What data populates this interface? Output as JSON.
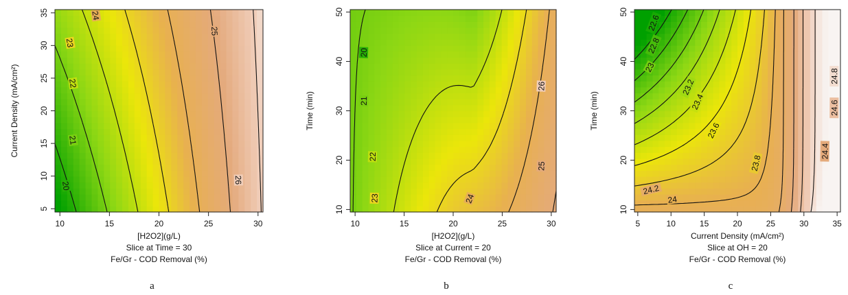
{
  "chart_data": [
    {
      "type": "heatmap",
      "panel_letter": "a",
      "xlabel": "[H2O2](g/L)",
      "ylabel": "Current Density (mA/cm²)",
      "caption_lines": [
        "Slice at Time = 30",
        "Fe/Gr - COD Removal (%)"
      ],
      "xlim": [
        9.5,
        30.5
      ],
      "ylim": [
        4.5,
        35.5
      ],
      "x_ticks": [
        10,
        15,
        20,
        25,
        30
      ],
      "y_ticks": [
        5,
        10,
        15,
        20,
        25,
        30,
        35
      ],
      "contour_levels": [
        "20",
        "21",
        "22",
        "23",
        "24",
        "25",
        "26"
      ],
      "color_range": [
        19.5,
        26.5
      ]
    },
    {
      "type": "heatmap",
      "panel_letter": "b",
      "xlabel": "[H2O2](g/L)",
      "ylabel": "Time (min)",
      "caption_lines": [
        "Slice at Current = 20",
        "Fe/Gr - COD Removal (%)"
      ],
      "xlim": [
        9.5,
        30.5
      ],
      "ylim": [
        9.5,
        50.5
      ],
      "x_ticks": [
        10,
        15,
        20,
        25,
        30
      ],
      "y_ticks": [
        10,
        20,
        30,
        40,
        50
      ],
      "contour_levels": [
        "20",
        "21",
        "22",
        "23",
        "24",
        "25",
        "26"
      ],
      "color_range": [
        19.5,
        26.5
      ]
    },
    {
      "type": "heatmap",
      "panel_letter": "c",
      "xlabel": "Current Density (mA/cm²)",
      "ylabel": "Time (min)",
      "caption_lines": [
        "Slice at OH = 20",
        "Fe/Gr - COD Removal (%)"
      ],
      "xlim": [
        4.5,
        35.5
      ],
      "ylim": [
        9.5,
        50.5
      ],
      "x_ticks": [
        5,
        10,
        15,
        20,
        25,
        30,
        35
      ],
      "y_ticks": [
        10,
        20,
        30,
        40,
        50
      ],
      "contour_levels": [
        "22.6",
        "22.8",
        "23",
        "23.2",
        "23.4",
        "23.6",
        "23.8",
        "24",
        "24.2",
        "24.4",
        "24.6",
        "24.8"
      ],
      "color_range": [
        22.5,
        24.9
      ]
    }
  ]
}
